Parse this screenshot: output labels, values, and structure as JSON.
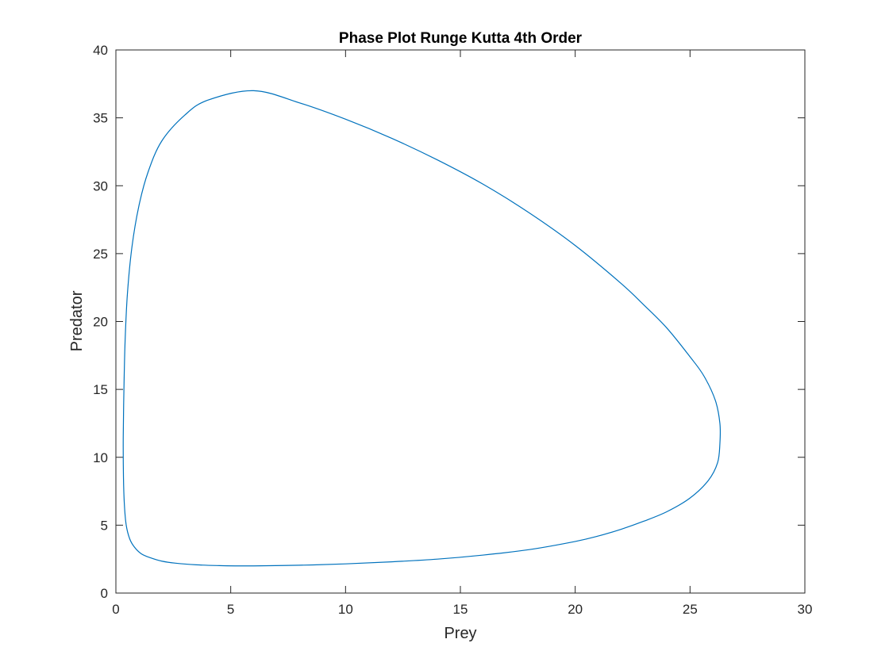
{
  "chart_data": {
    "type": "line",
    "title": "Phase Plot Runge Kutta 4th Order",
    "xlabel": "Prey",
    "ylabel": "Predator",
    "xlim": [
      0,
      30
    ],
    "ylim": [
      0,
      40
    ],
    "xticks": [
      0,
      5,
      10,
      15,
      20,
      25,
      30
    ],
    "yticks": [
      0,
      5,
      10,
      15,
      20,
      25,
      30,
      35,
      40
    ],
    "grid": false,
    "box": true,
    "line_color": "#0072BD",
    "series": [
      {
        "x": [
          6.0,
          8.0,
          10.0,
          12.0,
          14.0,
          16.0,
          18.0,
          20.0,
          21.0,
          22.0,
          23.0,
          24.0,
          25.0,
          25.8,
          26.2,
          26.3,
          26.3,
          26.1,
          25.6,
          25.0,
          24.0,
          23.0,
          22.0,
          20.0,
          18.0,
          16.0,
          14.0,
          12.0,
          10.0,
          8.0,
          6.0,
          4.0,
          3.0,
          2.0,
          1.4,
          1.0,
          0.7,
          0.5,
          0.4,
          0.35,
          0.32,
          0.33,
          0.37,
          0.45,
          0.6,
          0.8,
          1.1,
          1.5,
          2.0,
          2.6,
          3.5,
          4.5,
          5.2,
          6.0
        ],
        "y": [
          2.0,
          2.05,
          2.15,
          2.3,
          2.5,
          2.8,
          3.2,
          3.8,
          4.2,
          4.7,
          5.3,
          6.0,
          7.0,
          8.3,
          9.6,
          11.0,
          12.5,
          14.2,
          16.0,
          17.4,
          19.5,
          21.2,
          22.8,
          25.6,
          28.0,
          30.1,
          31.9,
          33.5,
          34.9,
          36.1,
          37.0,
          36.3,
          35.2,
          33.3,
          31.0,
          28.5,
          25.5,
          22.0,
          18.5,
          15.0,
          11.5,
          8.5,
          6.5,
          5.0,
          4.0,
          3.4,
          2.9,
          2.6,
          2.35,
          2.2,
          2.08,
          2.02,
          2.0,
          2.0
        ]
      }
    ]
  }
}
